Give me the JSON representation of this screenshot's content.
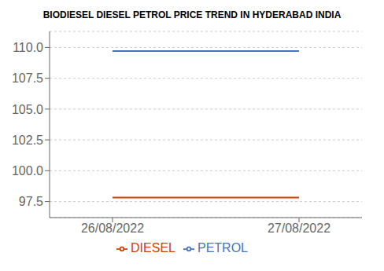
{
  "chart_data": {
    "type": "line",
    "title": "BIODIESEL DIESEL PETROL PRICE TREND IN HYDERABAD INDIA",
    "categories": [
      "26/08/2022",
      "27/08/2022"
    ],
    "series": [
      {
        "name": "PETROL",
        "color": "#4472C4",
        "values": [
          109.7,
          109.7
        ]
      },
      {
        "name": "DIESEL",
        "color": "#D44000",
        "values": [
          97.82,
          97.82
        ]
      }
    ],
    "ylim": [
      96.2,
      111.3
    ],
    "yticks": [
      97.5,
      {
        "value": 100,
        "label": "100.0"
      },
      102.5,
      {
        "value": 105,
        "label": "105.0"
      },
      107.5,
      {
        "value": 110,
        "label": "110.0"
      }
    ],
    "grid": true,
    "legend": "bottom"
  }
}
